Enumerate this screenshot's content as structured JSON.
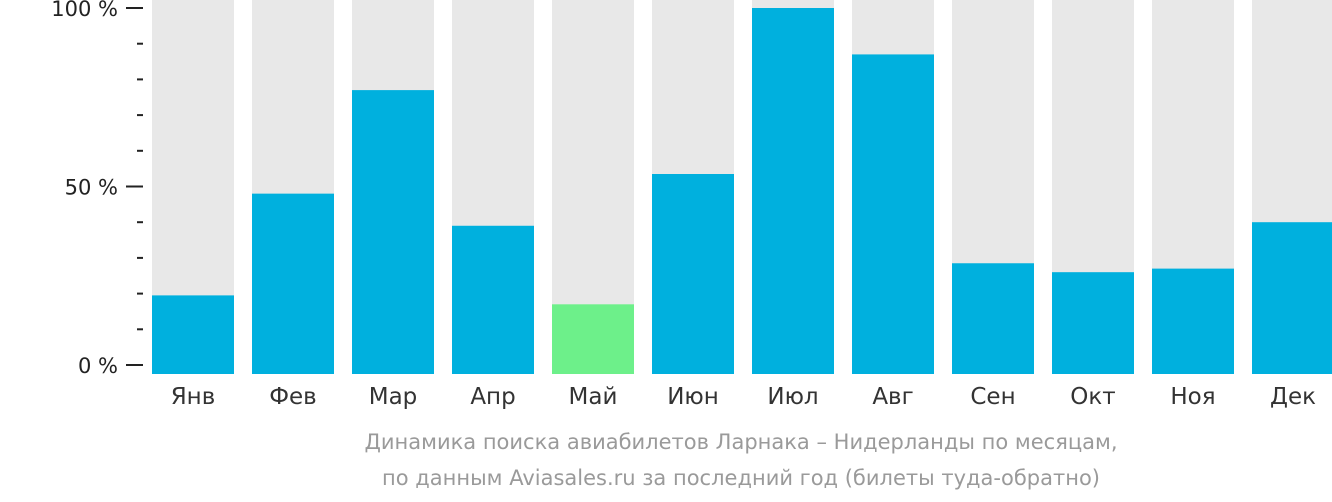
{
  "chart_data": {
    "type": "bar",
    "categories": [
      "Янв",
      "Фев",
      "Мар",
      "Апр",
      "Май",
      "Июн",
      "Июл",
      "Авг",
      "Сен",
      "Окт",
      "Ноя",
      "Дек"
    ],
    "values": [
      19.5,
      48,
      77,
      39,
      17,
      53.5,
      100,
      87,
      28.5,
      26,
      27,
      40
    ],
    "ylim": [
      0,
      100
    ],
    "yticks": [
      {
        "value": 0,
        "label": "0 %"
      },
      {
        "value": 50,
        "label": "50 %"
      },
      {
        "value": 100,
        "label": "100 %"
      }
    ],
    "minor_tick_step": 10,
    "highlight_index": 4,
    "colors": {
      "bar": "#00b0de",
      "highlight": "#6df08a",
      "track": "#e8e8e8",
      "axis": "#222222"
    },
    "caption_lines": [
      "Динамика поиска авиабилетов Ларнака – Нидерланды по месяцам,",
      "по данным Aviasales.ru за последний год (билеты туда-обратно)"
    ]
  }
}
